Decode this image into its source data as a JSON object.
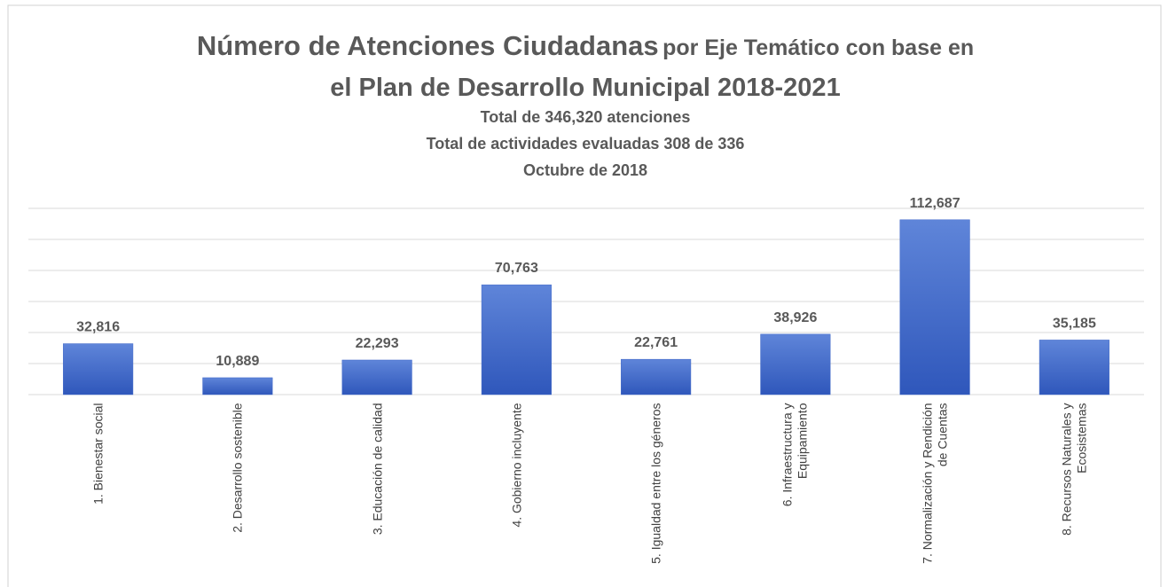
{
  "chart_data": {
    "type": "bar",
    "title": [
      "Número de Atenciones Ciudadanas",
      "por Eje Temático con base en",
      "el Plan de Desarrollo Municipal 2018-2021"
    ],
    "subtitle": [
      "Total de 346,320 atenciones",
      "Total de actividades evaluadas 308 de 336",
      "Octubre de 2018"
    ],
    "categories": [
      "1. Bienestar social",
      "2. Desarrollo sostenible",
      "3. Educación de calidad",
      "4. Gobierno incluyente",
      "5. Igualdad entre los géneros",
      "6. Infraestructura y Equipamiento",
      "7. Normalización y Rendición de Cuentas",
      "8. Recursos Naturales y Ecosistemas"
    ],
    "values": [
      32816,
      10889,
      22293,
      70763,
      22761,
      38926,
      112687,
      35185
    ],
    "value_labels": [
      "32,816",
      "10,889",
      "22,293",
      "70,763",
      "22,761",
      "38,926",
      "112,687",
      "35,185"
    ],
    "color": "#4169c8",
    "ylim": [
      0,
      120000
    ],
    "yticks": [
      0,
      20000,
      40000,
      60000,
      80000,
      100000,
      120000
    ],
    "grid": true
  }
}
